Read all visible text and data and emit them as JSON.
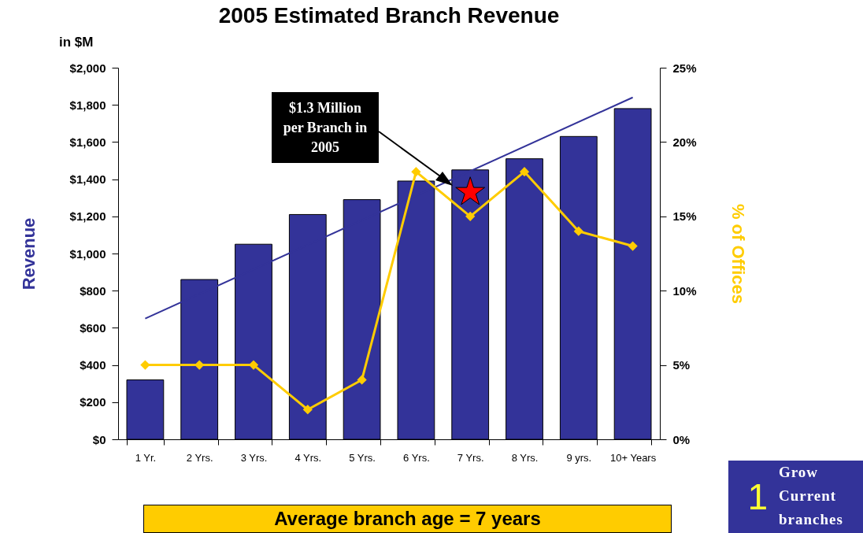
{
  "chart_data": {
    "type": "bar",
    "title": "2005 Estimated Branch Revenue",
    "ylabel": "Revenue",
    "y2label": "% of Offices",
    "categories": [
      "1 Yr.",
      "2 Yrs.",
      "3 Yrs.",
      "4 Yrs.",
      "5 Yrs.",
      "6 Yrs.",
      "7 Yrs.",
      "8 Yrs.",
      "9 yrs.",
      "10+ Years"
    ],
    "series": [
      {
        "color": "#333399",
        "values": [
          320,
          860,
          1050,
          1210,
          1290,
          1390,
          1450,
          1510,
          1630,
          1780
        ]
      },
      {
        "type": "line",
        "color": "#333399",
        "x": [
          "1 Yr.",
          "10+ Years"
        ],
        "values": [
          650,
          1840
        ],
        "marker": "none"
      },
      {
        "type": "line",
        "axis": "y2",
        "color": "#ffcc00",
        "values": [
          5,
          5,
          5,
          2,
          4,
          18,
          15,
          18,
          14,
          13
        ],
        "marker": "diamond"
      },
      {
        "type": "scatter",
        "color": "#ff0000",
        "x": [
          "7 Yrs."
        ],
        "values": [
          1330
        ],
        "marker": "star"
      }
    ],
    "ylim": [
      0,
      2000
    ],
    "yticks": [
      {
        "value": 0,
        "label": "$0"
      },
      {
        "value": 200,
        "label": "$200"
      },
      {
        "value": 400,
        "label": "$400"
      },
      {
        "value": 600,
        "label": "$600"
      },
      {
        "value": 800,
        "label": "$800"
      },
      {
        "value": 1000,
        "label": "$1,000"
      },
      {
        "value": 1200,
        "label": "$1,200"
      },
      {
        "value": 1400,
        "label": "$1,400"
      },
      {
        "value": 1600,
        "label": "$1,600"
      },
      {
        "value": 1800,
        "label": "$1,800"
      },
      {
        "value": 2000,
        "label": "$2,000"
      }
    ],
    "y2lim": [
      0,
      25
    ],
    "y2ticks": [
      {
        "value": 0,
        "label": "0%"
      },
      {
        "value": 5,
        "label": "5%"
      },
      {
        "value": 10,
        "label": "10%"
      },
      {
        "value": 15,
        "label": "15%"
      },
      {
        "value": 20,
        "label": "20%"
      },
      {
        "value": 25,
        "label": "25%"
      }
    ],
    "grid": false,
    "annotations": [
      "$1.3 Million per Branch in 2005",
      "in $M",
      "Average branch age = 7 years",
      "1",
      "Grow Current branches"
    ]
  }
}
